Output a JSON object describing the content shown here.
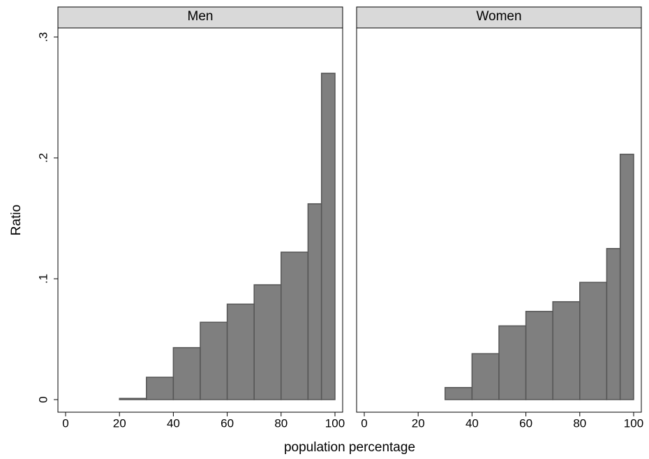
{
  "chart_data": {
    "type": "histogram",
    "ylabel": "Ratio",
    "xlabel": "population percentage",
    "color": "#7f7f7f",
    "xlim": [
      -2.85,
      102.85
    ],
    "xticks": [
      0,
      20,
      40,
      60,
      80,
      100
    ],
    "ylim": [
      -0.0104,
      0.3075
    ],
    "yticks": [
      0,
      {
        "value": 0.1,
        "label": ".1"
      },
      {
        "value": 0.2,
        "label": ".2"
      },
      {
        "value": 0.3,
        "label": ".3"
      }
    ],
    "panels": [
      {
        "title": "Men",
        "bins": [
          20,
          30,
          40,
          50,
          60,
          70,
          80,
          90,
          95,
          100
        ],
        "values": [
          0.001,
          0.0185,
          0.043,
          0.064,
          0.079,
          0.095,
          0.122,
          0.162,
          0.27
        ]
      },
      {
        "title": "Women",
        "bins": [
          30,
          40,
          50,
          60,
          70,
          80,
          90,
          95,
          100
        ],
        "values": [
          0.01,
          0.038,
          0.061,
          0.073,
          0.081,
          0.097,
          0.125,
          0.203
        ]
      }
    ]
  }
}
